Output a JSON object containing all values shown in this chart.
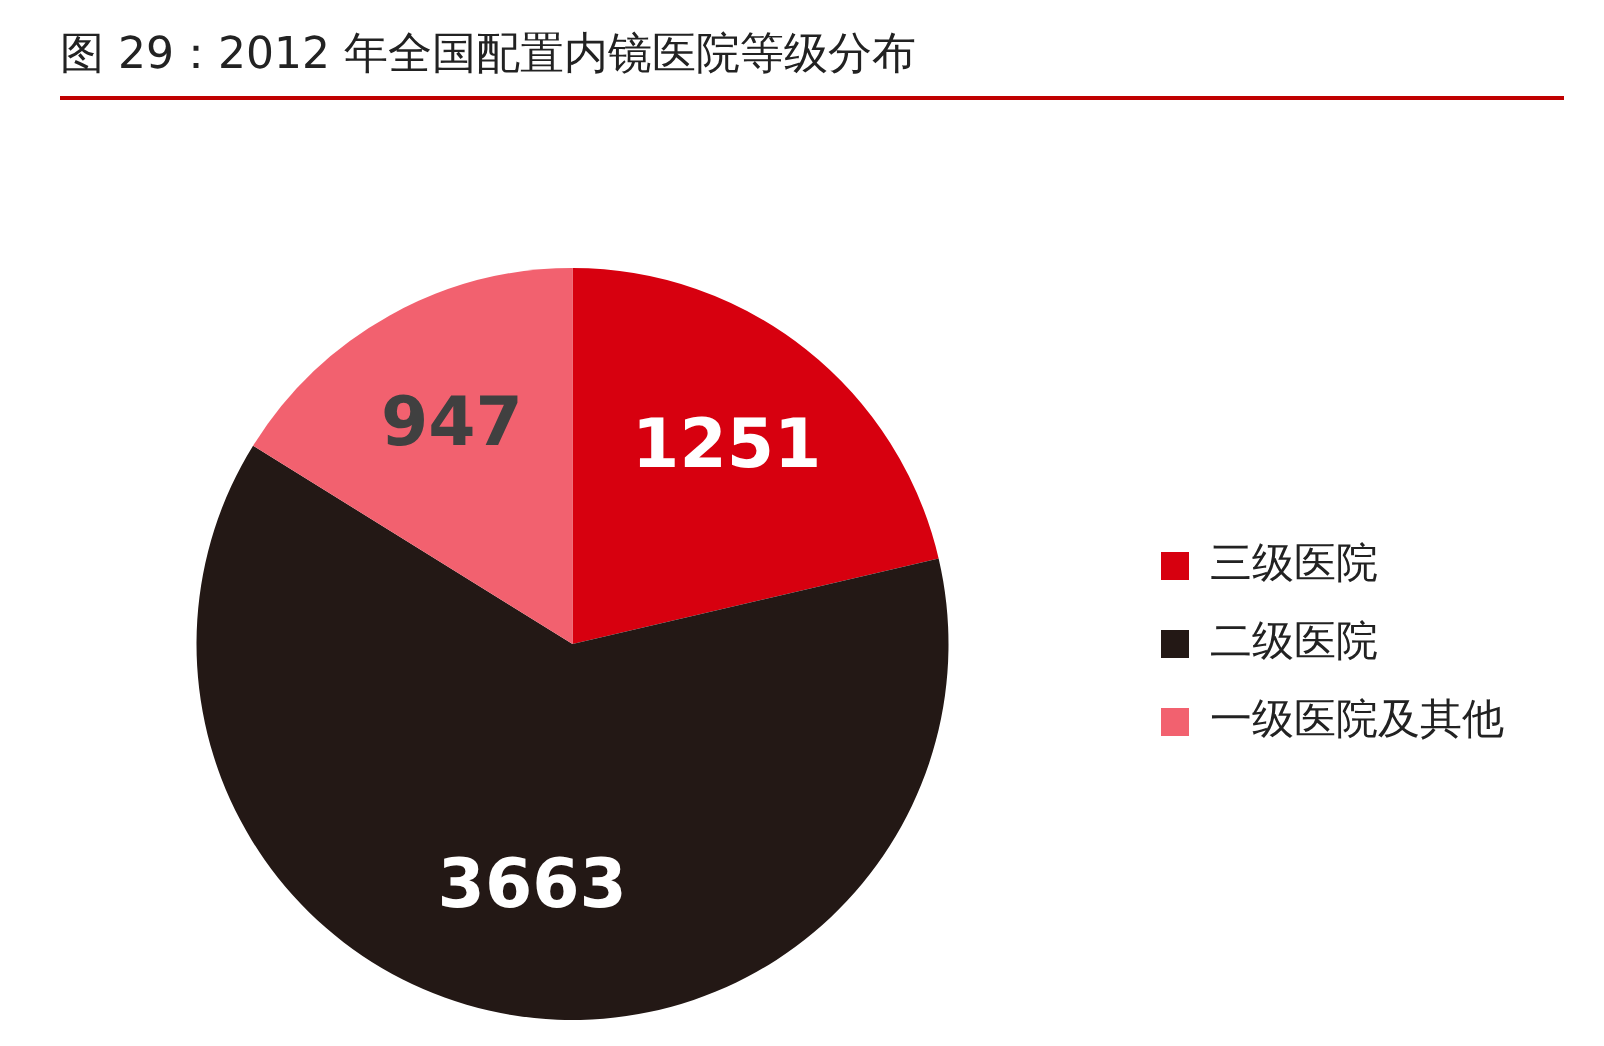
{
  "chart_data": {
    "type": "pie",
    "title": "图 29：2012 年全国配置内镜医院等级分布",
    "categories": [
      "三级医院",
      "二级医院",
      "一级医院及其他"
    ],
    "values": [
      1251,
      3663,
      947
    ],
    "colors": [
      "#d7000f",
      "#231815",
      "#f2616f"
    ],
    "data_labels": true,
    "legend": "right"
  }
}
